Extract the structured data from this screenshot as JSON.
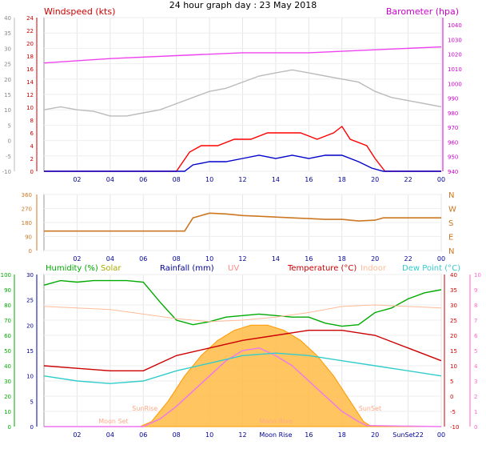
{
  "title": "24 hour graph day : 23 May 2018",
  "chart_data": [
    {
      "id": "wind",
      "type": "line",
      "title": "24 hour graph day : 23 May 2018",
      "labels": {
        "left": "Windspeed (kts)",
        "right": "Barometer (hpa)"
      },
      "colors": {
        "left_label": "#cc0000",
        "right_label": "#cc00cc",
        "gust": "#ff0000",
        "avg": "#0000cc",
        "baro": "#ee44ee",
        "alt": "#bbbbbb"
      },
      "x_ticks": [
        "02",
        "04",
        "06",
        "08",
        "10",
        "12",
        "14",
        "16",
        "18",
        "20",
        "22",
        "00"
      ],
      "xlim": [
        0,
        24
      ],
      "y_axes": {
        "outer": {
          "ticks": [
            "40",
            "35",
            "30",
            "25",
            "20",
            "15",
            "10",
            "5",
            "0",
            "-5",
            "-10"
          ],
          "ylim": [
            -10,
            40
          ]
        },
        "inner": {
          "ticks": [
            "24",
            "22",
            "20",
            "18",
            "16",
            "14",
            "12",
            "10",
            "8",
            "6",
            "4",
            "2",
            "0"
          ],
          "ylim": [
            0,
            24
          ]
        },
        "right": {
          "ticks": [
            "1040",
            "1030",
            "1020",
            "1010",
            "1000",
            "990",
            "980",
            "970",
            "960",
            "950",
            "940"
          ],
          "ylim": [
            940,
            1045
          ]
        }
      },
      "series": [
        {
          "name": "Windspeed (kts)",
          "axis": "inner",
          "color": "#ff0000",
          "points": [
            [
              0,
              0
            ],
            [
              8.0,
              0
            ],
            [
              8.8,
              3
            ],
            [
              9.5,
              4
            ],
            [
              10.5,
              4
            ],
            [
              11.5,
              5
            ],
            [
              12.5,
              5
            ],
            [
              13.5,
              6
            ],
            [
              14.5,
              6
            ],
            [
              15.5,
              6
            ],
            [
              16.5,
              5
            ],
            [
              17.5,
              6
            ],
            [
              18.0,
              7
            ],
            [
              18.5,
              5
            ],
            [
              19.5,
              4
            ],
            [
              20.0,
              2
            ],
            [
              20.6,
              0
            ],
            [
              24,
              0
            ]
          ]
        },
        {
          "name": "",
          "axis": "inner",
          "color": "#0000cc",
          "points": [
            [
              0,
              0
            ],
            [
              8.5,
              0
            ],
            [
              9.0,
              1
            ],
            [
              10,
              1.5
            ],
            [
              11,
              1.5
            ],
            [
              12,
              2
            ],
            [
              13,
              2.5
            ],
            [
              14,
              2
            ],
            [
              15,
              2.5
            ],
            [
              16,
              2
            ],
            [
              17,
              2.5
            ],
            [
              18,
              2.5
            ],
            [
              19,
              1.5
            ],
            [
              19.8,
              0.5
            ],
            [
              20.5,
              0
            ],
            [
              24,
              0
            ]
          ]
        },
        {
          "name": "Barometer (hpa)",
          "axis": "right",
          "color": "#ee44ee",
          "points": [
            [
              0,
              1014
            ],
            [
              4,
              1017
            ],
            [
              8,
              1019
            ],
            [
              12,
              1021
            ],
            [
              16,
              1021
            ],
            [
              20,
              1023
            ],
            [
              24,
              1025
            ]
          ]
        },
        {
          "name": "",
          "axis": "outer",
          "color": "#bbbbbb",
          "points": [
            [
              0,
              10
            ],
            [
              1,
              11
            ],
            [
              2,
              10
            ],
            [
              3,
              9.5
            ],
            [
              4,
              8
            ],
            [
              5,
              8
            ],
            [
              6,
              9
            ],
            [
              7,
              10
            ],
            [
              8,
              12
            ],
            [
              9,
              14
            ],
            [
              10,
              16
            ],
            [
              11,
              17
            ],
            [
              12,
              19
            ],
            [
              13,
              21
            ],
            [
              14,
              22
            ],
            [
              15,
              23
            ],
            [
              16,
              22
            ],
            [
              17,
              21
            ],
            [
              18,
              20
            ],
            [
              19,
              19
            ],
            [
              20,
              16
            ],
            [
              21,
              14
            ],
            [
              22,
              13
            ],
            [
              23,
              12
            ],
            [
              24,
              11
            ]
          ]
        }
      ]
    },
    {
      "id": "direction",
      "type": "line",
      "compass_labels": [
        "N",
        "W",
        "S",
        "E",
        "N"
      ],
      "colors": {
        "line": "#cc7722"
      },
      "x_ticks": [
        "02",
        "04",
        "06",
        "08",
        "10",
        "12",
        "14",
        "16",
        "18",
        "20",
        "22",
        "00"
      ],
      "xlim": [
        0,
        24
      ],
      "y_axes": {
        "left": {
          "ticks": [
            "360",
            "270",
            "180",
            "90",
            "0"
          ],
          "ylim": [
            0,
            360
          ]
        }
      },
      "series": [
        {
          "name": "",
          "color": "#cc7722",
          "points": [
            [
              0,
              125
            ],
            [
              8.5,
              125
            ],
            [
              9.0,
              210
            ],
            [
              10,
              240
            ],
            [
              11,
              235
            ],
            [
              12,
              225
            ],
            [
              13,
              220
            ],
            [
              14,
              215
            ],
            [
              15,
              210
            ],
            [
              16,
              205
            ],
            [
              17,
              200
            ],
            [
              18,
              200
            ],
            [
              19,
              190
            ],
            [
              20,
              195
            ],
            [
              20.5,
              210
            ],
            [
              24,
              210
            ]
          ]
        }
      ]
    },
    {
      "id": "temp",
      "type": "area",
      "labels": {
        "humidity": "Humidity (%)",
        "solar": "Solar",
        "rain": "Rainfall (mm)",
        "uv": "UV",
        "temp": "Temperature (°C)",
        "indoor": "Indoor",
        "dew": "Dew Point (°C)"
      },
      "annotations": [
        "Moon Set",
        "SunRise",
        "Moon Rise",
        "SunSet"
      ],
      "colors": {
        "humidity": "#00aa00",
        "solar": "#aaaa00",
        "rain": "#000099",
        "uv": "#ff8888",
        "temp": "#cc0000",
        "indoor": "#ffbb99",
        "dew": "#33cccc",
        "solar_fill": "#ffbb44",
        "uv_line": "#ee77ee"
      },
      "x_ticks": [
        "02",
        "04",
        "06",
        "08",
        "10",
        "12",
        "Moon Rise",
        "16",
        "18",
        "20",
        "SunSet22",
        "00"
      ],
      "xlim": [
        0,
        24
      ],
      "y_axes": {
        "outer_left": {
          "ticks": [
            "100",
            "90",
            "80",
            "70",
            "60",
            "50",
            "40",
            "30",
            "20",
            "10",
            "0"
          ],
          "ylim": [
            0,
            100
          ]
        },
        "inner_left": {
          "ticks": [
            "30",
            "25",
            "20",
            "15",
            "10",
            "5",
            "0"
          ],
          "ylim": [
            0,
            30
          ]
        },
        "right": {
          "ticks": [
            "40",
            "35",
            "30",
            "25",
            "20",
            "15",
            "10",
            "5",
            "0",
            "-5",
            "-10"
          ],
          "ylim": [
            -10,
            40
          ]
        },
        "far_right": {
          "ticks": [
            "10",
            "9",
            "8",
            "7",
            "6",
            "5",
            "4",
            "3",
            "2",
            "1",
            "0"
          ],
          "ylim": [
            0,
            10
          ]
        }
      },
      "series": [
        {
          "name": "Solar",
          "color": "#ffbb44",
          "points": [
            [
              0,
              0
            ],
            [
              5.8,
              0
            ],
            [
              6.5,
              1
            ],
            [
              7.5,
              5
            ],
            [
              8.5,
              10
            ],
            [
              9.5,
              14
            ],
            [
              10.5,
              17
            ],
            [
              11.5,
              19
            ],
            [
              12.5,
              20
            ],
            [
              13.5,
              20
            ],
            [
              14.5,
              19
            ],
            [
              15.5,
              17
            ],
            [
              16.5,
              14
            ],
            [
              17.5,
              10
            ],
            [
              18.5,
              5
            ],
            [
              19.3,
              1
            ],
            [
              19.8,
              0
            ],
            [
              24,
              0
            ]
          ]
        },
        {
          "name": "UV",
          "color": "#ee77ee",
          "points": [
            [
              0,
              0
            ],
            [
              6.0,
              0
            ],
            [
              7,
              1.5
            ],
            [
              8,
              4
            ],
            [
              9,
              7
            ],
            [
              10,
              10
            ],
            [
              11,
              13
            ],
            [
              12,
              15
            ],
            [
              13,
              15.5
            ],
            [
              14,
              14
            ],
            [
              15,
              12
            ],
            [
              16,
              9
            ],
            [
              17,
              6
            ],
            [
              18,
              3
            ],
            [
              19,
              1
            ],
            [
              19.5,
              0.2
            ],
            [
              24,
              0
            ]
          ]
        },
        {
          "name": "Humidity (%)",
          "color": "#00aa00",
          "points": [
            [
              0,
              93
            ],
            [
              1,
              96
            ],
            [
              2,
              95
            ],
            [
              3,
              96
            ],
            [
              5,
              96
            ],
            [
              6,
              95
            ],
            [
              7,
              82
            ],
            [
              8,
              70
            ],
            [
              9,
              67
            ],
            [
              10,
              69
            ],
            [
              11,
              72
            ],
            [
              12,
              73
            ],
            [
              13,
              74
            ],
            [
              14,
              73
            ],
            [
              15,
              72
            ],
            [
              16,
              72
            ],
            [
              17,
              68
            ],
            [
              18,
              66
            ],
            [
              19,
              67
            ],
            [
              20,
              75
            ],
            [
              21,
              78
            ],
            [
              22,
              84
            ],
            [
              23,
              88
            ],
            [
              24,
              90
            ]
          ]
        },
        {
          "name": "Indoor",
          "color": "#ffbb99",
          "points": [
            [
              0,
              79
            ],
            [
              4,
              77
            ],
            [
              8,
              71
            ],
            [
              10,
              69
            ],
            [
              12,
              70
            ],
            [
              14,
              72
            ],
            [
              16,
              75
            ],
            [
              18,
              79
            ],
            [
              20,
              80
            ],
            [
              22,
              79
            ],
            [
              24,
              78
            ]
          ]
        },
        {
          "name": "Temperature (°C)",
          "color": "#cc0000",
          "points": [
            [
              0,
              12
            ],
            [
              2,
              11.5
            ],
            [
              4,
              11
            ],
            [
              6,
              11
            ],
            [
              7,
              12.5
            ],
            [
              8,
              14
            ],
            [
              10,
              15.5
            ],
            [
              12,
              17
            ],
            [
              14,
              18
            ],
            [
              16,
              19
            ],
            [
              18,
              19
            ],
            [
              20,
              18
            ],
            [
              22,
              15.5
            ],
            [
              24,
              13
            ]
          ]
        },
        {
          "name": "Dew Point (°C)",
          "color": "#33cccc",
          "points": [
            [
              0,
              10
            ],
            [
              2,
              9
            ],
            [
              4,
              8.5
            ],
            [
              6,
              9
            ],
            [
              7,
              10
            ],
            [
              8,
              11
            ],
            [
              10,
              12.5
            ],
            [
              12,
              14
            ],
            [
              14,
              14.5
            ],
            [
              16,
              14
            ],
            [
              18,
              13
            ],
            [
              20,
              12
            ],
            [
              22,
              11
            ],
            [
              24,
              10
            ]
          ]
        }
      ]
    }
  ]
}
